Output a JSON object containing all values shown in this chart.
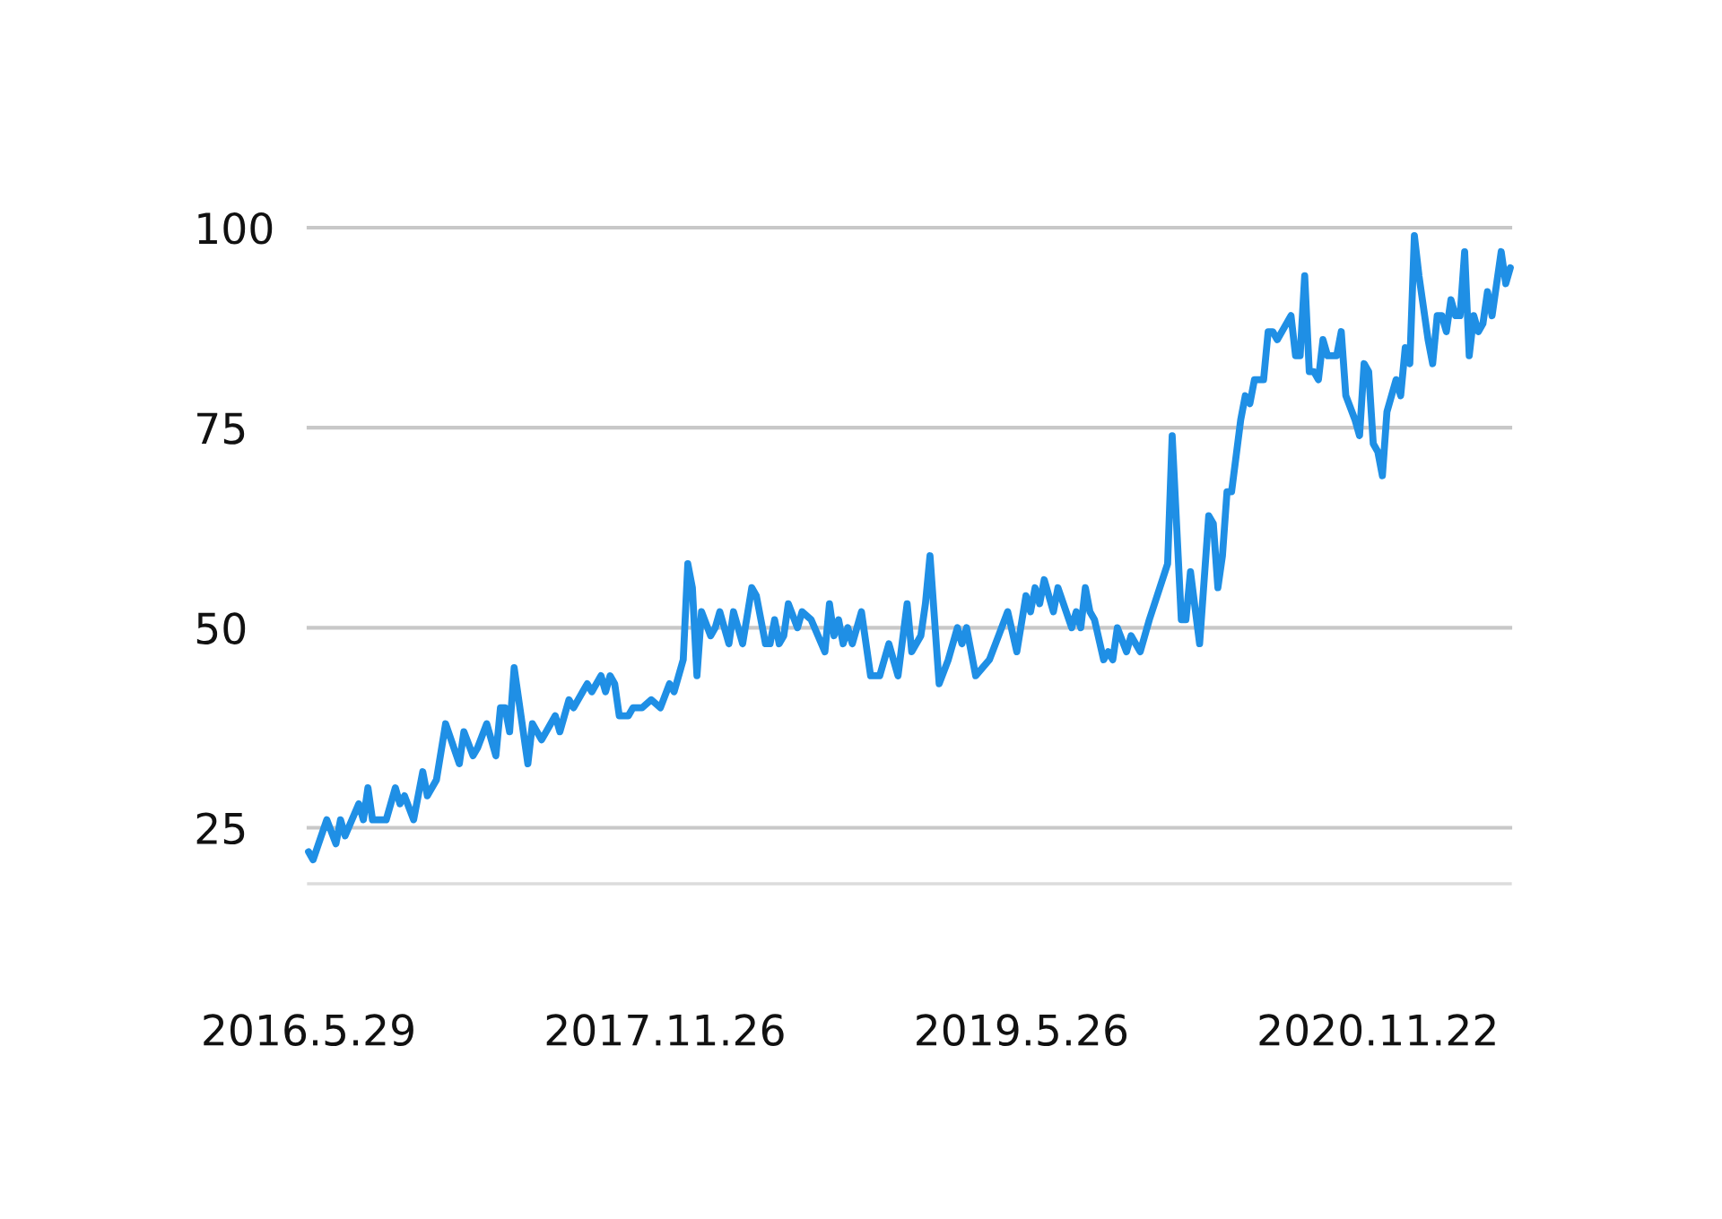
{
  "chart_data": {
    "type": "line",
    "x": [
      "2016-05-29",
      "2016-06-05",
      "2016-06-26",
      "2016-07-10",
      "2016-07-17",
      "2016-07-24",
      "2016-08-14",
      "2016-08-21",
      "2016-08-28",
      "2016-09-04",
      "2016-09-25",
      "2016-10-09",
      "2016-10-16",
      "2016-10-23",
      "2016-11-06",
      "2016-11-20",
      "2016-11-27",
      "2016-12-11",
      "2016-12-25",
      "2017-01-15",
      "2017-01-22",
      "2017-02-05",
      "2017-02-12",
      "2017-02-26",
      "2017-03-12",
      "2017-03-19",
      "2017-03-26",
      "2017-04-02",
      "2017-04-09",
      "2017-04-30",
      "2017-05-07",
      "2017-05-21",
      "2017-06-11",
      "2017-06-18",
      "2017-07-02",
      "2017-07-09",
      "2017-07-23",
      "2017-07-30",
      "2017-08-06",
      "2017-08-20",
      "2017-08-27",
      "2017-09-03",
      "2017-09-10",
      "2017-09-17",
      "2017-10-01",
      "2017-10-08",
      "2017-10-22",
      "2017-11-05",
      "2017-11-19",
      "2017-12-03",
      "2017-12-10",
      "2017-12-17",
      "2017-12-24",
      "2017-12-31",
      "2018-01-07",
      "2018-01-14",
      "2018-01-21",
      "2018-02-04",
      "2018-02-11",
      "2018-02-18",
      "2018-03-04",
      "2018-03-11",
      "2018-03-25",
      "2018-04-08",
      "2018-04-15",
      "2018-04-29",
      "2018-05-06",
      "2018-05-13",
      "2018-05-20",
      "2018-05-27",
      "2018-06-03",
      "2018-06-17",
      "2018-06-24",
      "2018-07-08",
      "2018-07-29",
      "2018-08-05",
      "2018-08-12",
      "2018-08-19",
      "2018-08-26",
      "2018-09-02",
      "2018-09-09",
      "2018-09-23",
      "2018-10-07",
      "2018-10-21",
      "2018-11-04",
      "2018-11-18",
      "2018-12-02",
      "2018-12-09",
      "2018-12-23",
      "2018-12-30",
      "2019-01-06",
      "2019-01-20",
      "2019-02-03",
      "2019-02-17",
      "2019-02-24",
      "2019-03-03",
      "2019-03-17",
      "2019-04-07",
      "2019-04-21",
      "2019-05-05",
      "2019-05-19",
      "2019-06-02",
      "2019-06-09",
      "2019-06-16",
      "2019-06-23",
      "2019-06-30",
      "2019-07-14",
      "2019-07-21",
      "2019-08-11",
      "2019-08-18",
      "2019-08-25",
      "2019-09-01",
      "2019-09-08",
      "2019-09-15",
      "2019-09-29",
      "2019-10-06",
      "2019-10-13",
      "2019-10-20",
      "2019-11-03",
      "2019-11-10",
      "2019-11-24",
      "2019-12-08",
      "2020-01-05",
      "2020-01-12",
      "2020-01-26",
      "2020-02-02",
      "2020-02-09",
      "2020-02-23",
      "2020-03-08",
      "2020-03-15",
      "2020-03-22",
      "2020-03-29",
      "2020-04-05",
      "2020-04-12",
      "2020-04-26",
      "2020-05-03",
      "2020-05-10",
      "2020-05-17",
      "2020-05-31",
      "2020-06-07",
      "2020-06-14",
      "2020-06-21",
      "2020-07-05",
      "2020-07-12",
      "2020-07-19",
      "2020-07-26",
      "2020-08-02",
      "2020-08-09",
      "2020-08-16",
      "2020-08-23",
      "2020-08-30",
      "2020-09-06",
      "2020-09-20",
      "2020-09-27",
      "2020-10-04",
      "2020-10-18",
      "2020-10-25",
      "2020-11-01",
      "2020-11-08",
      "2020-11-15",
      "2020-11-22",
      "2020-11-29",
      "2020-12-06",
      "2020-12-20",
      "2020-12-27",
      "2021-01-03",
      "2021-01-10",
      "2021-01-17",
      "2021-01-24",
      "2021-02-07",
      "2021-02-14",
      "2021-02-21",
      "2021-02-28",
      "2021-03-07",
      "2021-03-14",
      "2021-03-21",
      "2021-03-28",
      "2021-04-04",
      "2021-04-11",
      "2021-04-18",
      "2021-04-25",
      "2021-05-02",
      "2021-05-09",
      "2021-05-16",
      "2021-05-23",
      "2021-05-30",
      "2021-06-06",
      "2021-06-13"
    ],
    "series": [
      {
        "color": "#1f8fe5",
        "values": [
          22,
          21,
          26,
          23,
          26,
          24,
          28,
          26,
          30,
          26,
          26,
          30,
          28,
          29,
          26,
          32,
          29,
          31,
          38,
          33,
          37,
          34,
          35,
          38,
          34,
          40,
          40,
          37,
          45,
          33,
          38,
          36,
          39,
          37,
          41,
          40,
          42,
          43,
          42,
          44,
          42,
          44,
          43,
          39,
          39,
          40,
          40,
          41,
          40,
          43,
          42,
          44,
          46,
          58,
          55,
          44,
          52,
          49,
          50,
          52,
          48,
          52,
          48,
          55,
          54,
          48,
          48,
          51,
          48,
          49,
          53,
          50,
          52,
          51,
          47,
          53,
          49,
          51,
          48,
          50,
          48,
          52,
          44,
          44,
          48,
          44,
          53,
          47,
          49,
          53,
          59,
          43,
          46,
          50,
          48,
          50,
          44,
          46,
          49,
          52,
          47,
          54,
          52,
          55,
          53,
          56,
          52,
          55,
          50,
          52,
          50,
          55,
          52,
          51,
          46,
          47,
          46,
          50,
          47,
          49,
          47,
          51,
          58,
          74,
          51,
          51,
          57,
          48,
          64,
          63,
          55,
          59,
          67,
          67,
          76,
          79,
          78,
          81,
          81,
          87,
          87,
          86,
          88,
          89,
          84,
          84,
          94,
          82,
          82,
          81,
          86,
          84,
          84,
          87,
          79,
          76,
          74,
          83,
          82,
          73,
          72,
          69,
          77,
          81,
          79,
          85,
          83,
          99,
          94,
          86,
          83,
          89,
          89,
          87,
          91,
          89,
          89,
          97,
          84,
          89,
          87,
          88,
          92,
          89,
          93,
          97,
          93,
          95
        ]
      }
    ],
    "xlim": [
      "2016-05-29",
      "2021-06-13"
    ],
    "xticks": [
      {
        "value": "2016-05-29",
        "label": "2016.5.29"
      },
      {
        "value": "2017-11-26",
        "label": "2017.11.26"
      },
      {
        "value": "2019-05-26",
        "label": "2019.5.26"
      },
      {
        "value": "2020-11-22",
        "label": "2020.11.22"
      }
    ],
    "ylim": [
      18,
      100
    ],
    "yticks": [
      25,
      50,
      75,
      100
    ],
    "grid": "y",
    "line_style": "solid"
  }
}
